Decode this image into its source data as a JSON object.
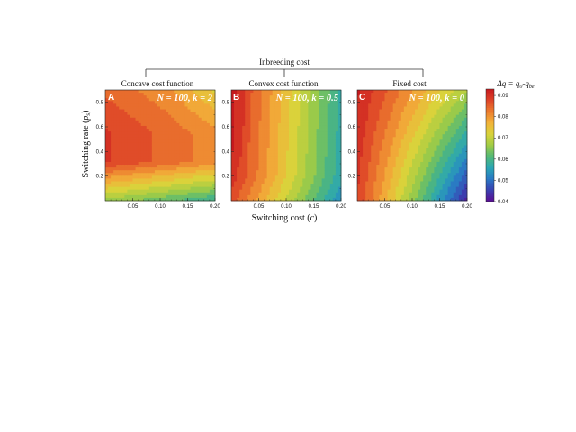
{
  "figure": {
    "group_label": "Inbreeding cost",
    "y_axis_label": "Switching rate (p_s)",
    "x_axis_label": "Switching cost (c)",
    "colorbar_label": "Δq = q₀-q_{be}"
  },
  "colors": {
    "scale": [
      "#5b0e92",
      "#3a3fb0",
      "#2a78c4",
      "#2aa6b4",
      "#53b877",
      "#a1cc45",
      "#d9d33b",
      "#f2b23a",
      "#ec7d2f",
      "#de4428",
      "#c6191e"
    ],
    "contour_line": "#3a2a1a"
  },
  "chart_data": [
    {
      "type": "heatmap",
      "panel": "A",
      "title": "Concave cost function",
      "annotation": "N = 100, k = 2",
      "x_ticks": [
        "0.05",
        "0.10",
        "0.15",
        "0.20"
      ],
      "y_ticks": [
        "0.2",
        "0.4",
        "0.6",
        "0.8"
      ],
      "xlim": [
        0.0,
        0.2
      ],
      "ylim": [
        0.0,
        0.9
      ],
      "cmap_range": [
        0.04,
        0.093
      ],
      "summary": "high values (~0.088) at low switching cost and mid switching rate, decreasing toward low switching rate (~0.068 at p_s ≈ 0.05) and slightly toward high cost"
    },
    {
      "type": "heatmap",
      "panel": "B",
      "title": "Convex cost function",
      "annotation": "N = 100, k = 0.5",
      "x_ticks": [
        "0.05",
        "0.10",
        "0.15",
        "0.20"
      ],
      "y_ticks": [
        "0.2",
        "0.4",
        "0.6",
        "0.8"
      ],
      "xlim": [
        0.0,
        0.2
      ],
      "ylim": [
        0.0,
        0.9
      ],
      "cmap_range": [
        0.04,
        0.093
      ],
      "summary": "values fall from ~0.09 at low cost to ~0.061 at c = 0.20, with contours running mostly vertical"
    },
    {
      "type": "heatmap",
      "panel": "C",
      "title": "Fixed cost",
      "annotation": "N = 100, k = 0",
      "x_ticks": [
        "0.05",
        "0.10",
        "0.15",
        "0.20"
      ],
      "y_ticks": [
        "0.2",
        "0.4",
        "0.6",
        "0.8"
      ],
      "xlim": [
        0.0,
        0.2
      ],
      "ylim": [
        0.0,
        0.9
      ],
      "cmap_range": [
        0.04,
        0.093
      ],
      "summary": "steep gradient from ~0.092 at low cost down to ~0.04 at high cost and low switching rate; contours diagonal"
    }
  ],
  "colorbar": {
    "ticks": [
      "0.09",
      "0.08",
      "0.07",
      "0.06",
      "0.05",
      "0.04"
    ],
    "tick_values": [
      0.09,
      0.08,
      0.07,
      0.06,
      0.05,
      0.04
    ],
    "range": [
      0.04,
      0.093
    ]
  }
}
